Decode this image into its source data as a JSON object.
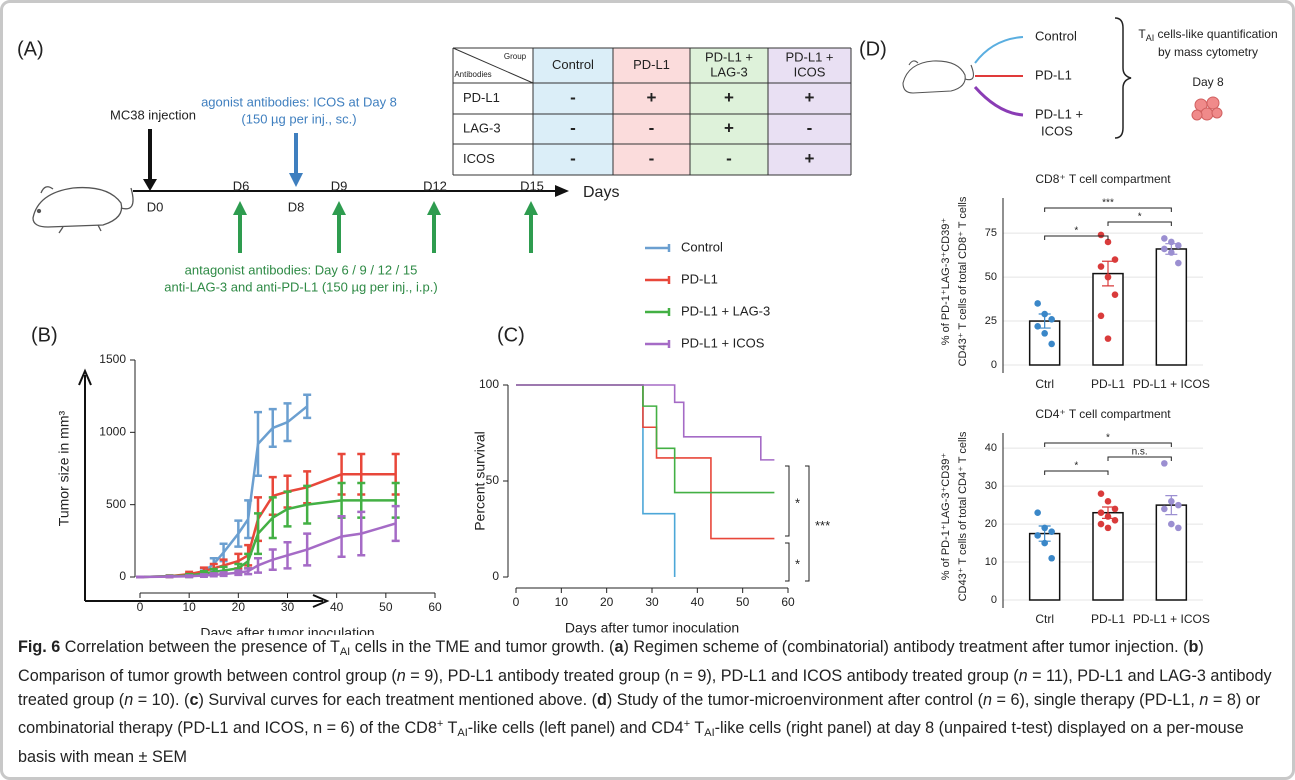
{
  "panel_labels": [
    "(A)",
    "(B)",
    "(C)",
    "(D)"
  ],
  "panel_a": {
    "table": {
      "corner": [
        "Group",
        "Antibodies"
      ],
      "columns": [
        [
          "Control"
        ],
        [
          "PD-L1"
        ],
        [
          "PD-L1 +",
          "LAG-3"
        ],
        [
          "PD-L1 +",
          "ICOS"
        ]
      ],
      "rows": [
        {
          "label": "PD-L1",
          "cells": [
            "-",
            "+",
            "+",
            "+"
          ]
        },
        {
          "label": "LAG-3",
          "cells": [
            "-",
            "-",
            "+",
            "-"
          ]
        },
        {
          "label": "ICOS",
          "cells": [
            "-",
            "-",
            "-",
            "+"
          ]
        }
      ]
    },
    "injection": "MC38 injection",
    "days": [
      "D0",
      "D6",
      "D8",
      "D9",
      "D12",
      "D15"
    ],
    "axis_label": "Days",
    "agonist": [
      "agonist antibodies: ICOS at Day 8",
      "(150 µg per inj., sc.)"
    ],
    "antagonist": [
      "antagonist antibodies: Day 6 / 9 / 12 / 15",
      "anti-LAG-3 and anti-PD-L1 (150 µg per inj., i.p.)"
    ]
  },
  "panel_d": {
    "groups": [
      "Control",
      "PD-L1",
      [
        "PD-L1 +",
        "ICOS"
      ]
    ],
    "method": [
      "T",
      "AI",
      " cells-like quantification",
      "by mass cytometry"
    ],
    "day": "Day 8"
  },
  "chart_data": [
    {
      "type": "line",
      "ylabel": "Tumor size in mm³",
      "xlabel": "Days after tumor inoculation",
      "xlim": [
        0,
        60
      ],
      "xticks": [
        0,
        10,
        20,
        30,
        40,
        50,
        60
      ],
      "ylim": [
        0,
        1500
      ],
      "yticks": [
        0,
        500,
        1000,
        1500
      ],
      "series": [
        {
          "name": "Control",
          "color": "#6b9fd0",
          "x": [
            0,
            6,
            10,
            13,
            15,
            17,
            20,
            22,
            24,
            27,
            30,
            34
          ],
          "values": [
            0,
            5,
            15,
            40,
            90,
            170,
            300,
            400,
            920,
            1030,
            1070,
            1180
          ],
          "errors": [
            2,
            5,
            10,
            20,
            40,
            60,
            90,
            130,
            220,
            130,
            130,
            80
          ]
        },
        {
          "name": "PD-L1",
          "color": "#e8473a",
          "x": [
            0,
            6,
            10,
            13,
            15,
            17,
            20,
            22,
            24,
            27,
            30,
            34,
            41,
            45,
            52
          ],
          "values": [
            0,
            5,
            20,
            40,
            60,
            80,
            110,
            150,
            400,
            560,
            590,
            620,
            710,
            710,
            710
          ],
          "errors": [
            2,
            5,
            15,
            25,
            30,
            40,
            50,
            70,
            150,
            130,
            110,
            110,
            140,
            140,
            140
          ]
        },
        {
          "name": "PD-L1 + LAG-3",
          "color": "#43b044",
          "x": [
            0,
            6,
            10,
            13,
            15,
            17,
            20,
            22,
            24,
            27,
            30,
            34,
            41,
            45,
            52
          ],
          "values": [
            0,
            5,
            10,
            25,
            35,
            45,
            60,
            110,
            300,
            410,
            470,
            500,
            530,
            530,
            530
          ],
          "errors": [
            2,
            4,
            10,
            15,
            20,
            25,
            30,
            50,
            140,
            140,
            120,
            130,
            120,
            120,
            120
          ]
        },
        {
          "name": "PD-L1 + ICOS",
          "color": "#a56bc6",
          "x": [
            0,
            6,
            10,
            13,
            15,
            17,
            20,
            22,
            24,
            27,
            30,
            34,
            41,
            45,
            52
          ],
          "values": [
            0,
            3,
            5,
            10,
            15,
            20,
            30,
            40,
            80,
            120,
            150,
            190,
            280,
            300,
            370
          ],
          "errors": [
            2,
            3,
            5,
            8,
            10,
            12,
            15,
            20,
            50,
            70,
            90,
            110,
            140,
            150,
            120
          ]
        }
      ]
    },
    {
      "type": "step",
      "ylabel": "Percent survival",
      "xlabel": "Days after tumor inoculation",
      "xlim": [
        0,
        60
      ],
      "xticks": [
        0,
        10,
        20,
        30,
        40,
        50,
        60
      ],
      "ylim": [
        0,
        100
      ],
      "yticks": [
        0,
        50,
        100
      ],
      "series": [
        {
          "color": "#4ca7d8",
          "x": [
            0,
            28,
            35
          ],
          "values": [
            100,
            33,
            0
          ]
        },
        {
          "color": "#e8473a",
          "x": [
            0,
            28,
            31,
            43,
            57
          ],
          "values": [
            100,
            78,
            62,
            20,
            20
          ]
        },
        {
          "color": "#43b044",
          "x": [
            0,
            28,
            31,
            35,
            57
          ],
          "values": [
            100,
            89,
            67,
            44,
            44
          ]
        },
        {
          "color": "#a56bc6",
          "x": [
            0,
            35,
            37,
            54,
            57
          ],
          "values": [
            100,
            91,
            73,
            61,
            61
          ]
        }
      ],
      "annotations": [
        "*",
        "***",
        "*"
      ]
    },
    {
      "type": "dotbar",
      "title": "CD8⁺ T cell compartment",
      "ylabel": [
        "% of PD-1⁺LAG-3⁺CD39⁺",
        "CD43⁺ T cells of total CD8⁺ T cells"
      ],
      "categories": [
        "Ctrl",
        "PD-L1",
        "PD-L1 + ICOS"
      ],
      "colors": [
        "#3a87c8",
        "#d93b3b",
        "#9b8fd1"
      ],
      "values": [
        25,
        52,
        66
      ],
      "errors": [
        4,
        7,
        3
      ],
      "points": [
        [
          35,
          29,
          26,
          22,
          18,
          12
        ],
        [
          74,
          70,
          60,
          56,
          50,
          40,
          28,
          15
        ],
        [
          72,
          70,
          68,
          66,
          64,
          58
        ]
      ],
      "ylim": [
        0,
        95
      ],
      "yticks": [
        0,
        25,
        50,
        75
      ],
      "grid": true,
      "annotations": [
        {
          "label": "***",
          "between": [
            "Ctrl",
            "PD-L1 + ICOS"
          ]
        },
        {
          "label": "*",
          "between": [
            "PD-L1",
            "PD-L1 + ICOS"
          ]
        },
        {
          "label": "*",
          "between": [
            "Ctrl",
            "PD-L1"
          ]
        }
      ]
    },
    {
      "type": "dotbar",
      "title": "CD4⁺ T cell compartment",
      "ylabel": [
        "% of PD-1⁺LAG-3⁺CD39⁺",
        "CD43⁺ T cells of total CD4⁺ T cells"
      ],
      "categories": [
        "Ctrl",
        "PD-L1",
        "PD-L1 + ICOS"
      ],
      "colors": [
        "#3a87c8",
        "#d93b3b",
        "#9b8fd1"
      ],
      "values": [
        17.5,
        23,
        25
      ],
      "errors": [
        2,
        1.5,
        2.5
      ],
      "points": [
        [
          23,
          19,
          18,
          17,
          15,
          11
        ],
        [
          28,
          26,
          24,
          23,
          22,
          21,
          20,
          19
        ],
        [
          36,
          26,
          25,
          24,
          20,
          19
        ]
      ],
      "ylim": [
        0,
        44
      ],
      "yticks": [
        0,
        10,
        20,
        30,
        40
      ],
      "grid": true,
      "annotations": [
        {
          "label": "*",
          "between": [
            "Ctrl",
            "PD-L1 + ICOS"
          ]
        },
        {
          "label": "n.s.",
          "between": [
            "PD-L1",
            "PD-L1 + ICOS"
          ]
        },
        {
          "label": "*",
          "between": [
            "Ctrl",
            "PD-L1"
          ]
        }
      ]
    }
  ],
  "caption": {
    "runs": [
      {
        "text": "Fig. 6",
        "style": "bold"
      },
      {
        "text": " Correlation between the presence of T"
      },
      {
        "text": "AI",
        "style": "sub"
      },
      {
        "text": " cells in the TME and tumor growth. ("
      },
      {
        "text": "a",
        "style": "bold"
      },
      {
        "text": ") Regimen scheme of (combinatorial) antibody treatment after tumor injection. ("
      },
      {
        "text": "b",
        "style": "bold"
      },
      {
        "text": ") Comparison of tumor growth between control group ("
      },
      {
        "text": "n",
        "style": "italic"
      },
      {
        "text": " = 9), PD-L1 antibody treated group (n = 9), PD-L1 and ICOS antibody treated group ("
      },
      {
        "text": "n",
        "style": "italic"
      },
      {
        "text": " = 11), PD-L1 and LAG-3 antibody treated group ("
      },
      {
        "text": "n",
        "style": "italic"
      },
      {
        "text": " = 10). ("
      },
      {
        "text": "c",
        "style": "bold"
      },
      {
        "text": ") Survival curves for each treatment mentioned above. ("
      },
      {
        "text": "d",
        "style": "bold"
      },
      {
        "text": ") Study of the tumor-microenvironment after control ("
      },
      {
        "text": "n",
        "style": "italic"
      },
      {
        "text": " = 6), single therapy (PD-L1, "
      },
      {
        "text": "n",
        "style": "italic"
      },
      {
        "text": " = 8) or combinatorial therapy (PD-L1 and ICOS, n = 6) of the CD8"
      },
      {
        "text": "+",
        "style": "sup"
      },
      {
        "text": " T"
      },
      {
        "text": "AI",
        "style": "sub"
      },
      {
        "text": "-like cells (left panel) and CD4"
      },
      {
        "text": "+",
        "style": "sup"
      },
      {
        "text": " T"
      },
      {
        "text": "AI",
        "style": "sub"
      },
      {
        "text": "-like cells (right panel) at day 8 (unpaired t-test) displayed on a per-mouse basis with mean ± SEM"
      }
    ]
  }
}
